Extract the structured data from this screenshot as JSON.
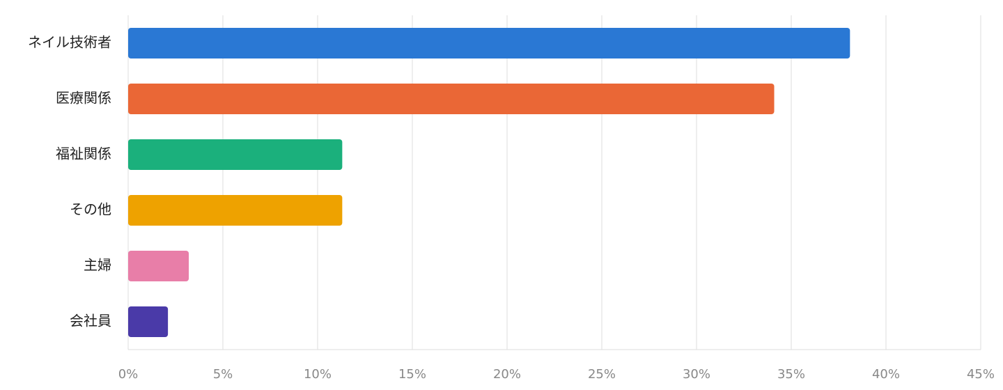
{
  "chart_data": {
    "type": "bar",
    "orientation": "horizontal",
    "categories": [
      "ネイル技術者",
      "医療関係",
      "福祉関係",
      "その他",
      "主婦",
      "会社員"
    ],
    "values": [
      38.1,
      34.1,
      11.3,
      11.3,
      3.2,
      2.1
    ],
    "colors": [
      "#2a78d4",
      "#ea6736",
      "#1bb07c",
      "#eea200",
      "#e87ea8",
      "#4a3aa8"
    ],
    "xlim": [
      0,
      45
    ],
    "xticks": [
      {
        "value": 0,
        "label": "0%"
      },
      {
        "value": 5,
        "label": "5%"
      },
      {
        "value": 10,
        "label": "10%"
      },
      {
        "value": 15,
        "label": "15%"
      },
      {
        "value": 20,
        "label": "20%"
      },
      {
        "value": 25,
        "label": "25%"
      },
      {
        "value": 30,
        "label": "30%"
      },
      {
        "value": 35,
        "label": "35%"
      },
      {
        "value": 40,
        "label": "40%"
      },
      {
        "value": 45,
        "label": "45%"
      }
    ],
    "grid": true
  }
}
